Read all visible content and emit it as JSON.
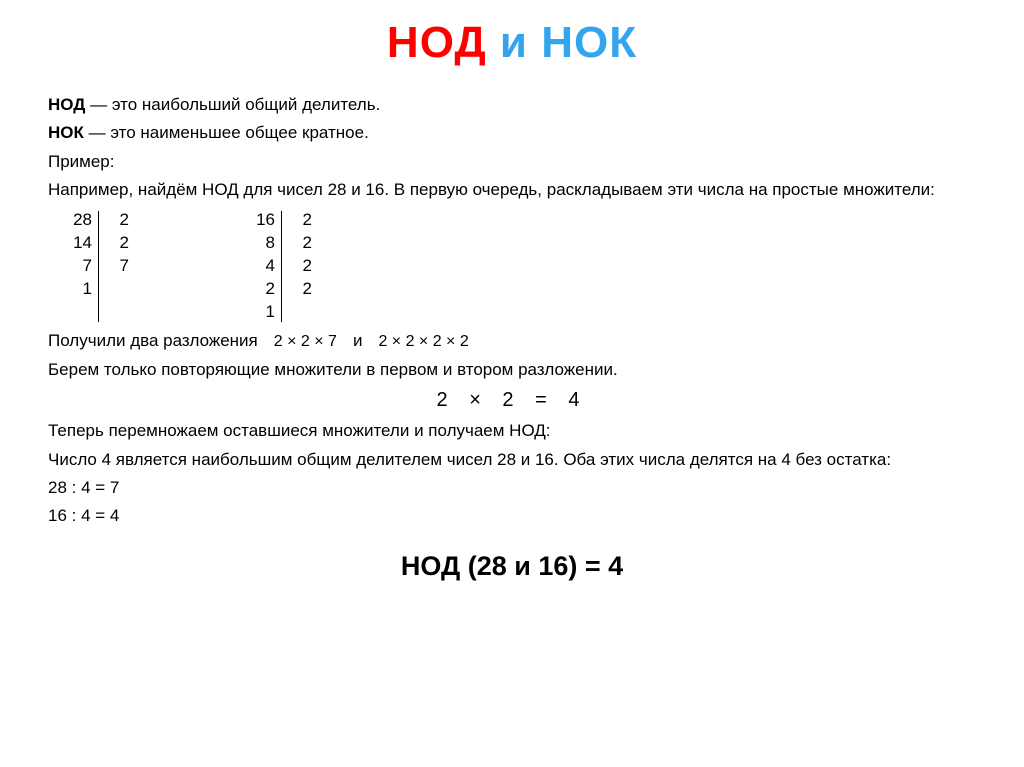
{
  "title": {
    "nod": "НОД",
    "i": "и",
    "nok": "НОК"
  },
  "defs": {
    "nod_term": "НОД",
    "nod_text": " — это наибольший общий делитель.",
    "nok_term": "НОК",
    "nok_text": " — это наименьшее общее кратное."
  },
  "example": {
    "label": "Пример:",
    "intro": "Например, найдём НОД для чисел 28 и 16. В первую очередь, раскладываем эти числа на простые множители:"
  },
  "factorization": {
    "table1": {
      "left": [
        "28",
        "14",
        "7",
        "1"
      ],
      "right": [
        "2",
        "2",
        "7",
        ""
      ]
    },
    "table2": {
      "left": [
        "16",
        "8",
        "4",
        "2",
        "1"
      ],
      "right": [
        "2",
        "2",
        "2",
        "2",
        ""
      ]
    }
  },
  "decomp": {
    "lead": "Получили два разложения",
    "expr1": "2 × 2 × 7",
    "sep": "и",
    "expr2": "2 × 2 × 2 × 2"
  },
  "step2": "Берем только повторяющие множители в первом и втором разложении.",
  "big_expr": "2 × 2 = 4",
  "step3": "Теперь перемножаем оставшиеся множители и получаем НОД:",
  "conclusion": "Число 4 является наибольшим общим делителем чисел 28 и 16. Оба этих числа делятся на 4 без остатка:",
  "checks": {
    "a": "28 : 4 = 7",
    "b": "16 : 4 = 4"
  },
  "result": "НОД (28 и 16) = 4",
  "colors": {
    "nod": "#ff0000",
    "nok": "#33a5ef",
    "text": "#000000",
    "background": "#ffffff"
  }
}
